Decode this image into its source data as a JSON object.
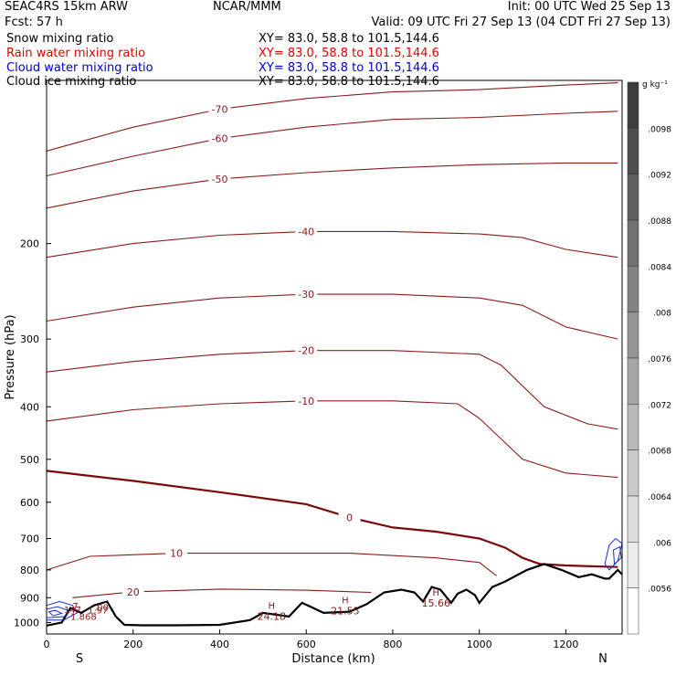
{
  "header": {
    "model": "SEAC4RS 15km ARW",
    "org": "NCAR/MMM",
    "init": "Init: 00 UTC Wed 25 Sep 13",
    "fcst": "Fcst:   57 h",
    "valid": "Valid: 09 UTC Fri 27 Sep 13 (04 CDT Fri 27 Sep 13)"
  },
  "fields": [
    {
      "name": "Snow mixing ratio",
      "xy": "XY=  83.0, 58.8 to 101.5,144.6",
      "color": "#000000"
    },
    {
      "name": "Rain water mixing ratio",
      "xy": "XY=  83.0, 58.8 to 101.5,144.6",
      "color": "#e00000"
    },
    {
      "name": "Cloud water mixing ratio",
      "xy": "XY=  83.0, 58.8 to 101.5,144.6",
      "color": "#0000cc"
    },
    {
      "name": "Cloud ice mixing ratio",
      "xy": "XY=  83.0, 58.8 to 101.5,144.6",
      "color": "#000000"
    }
  ],
  "chart_data": {
    "type": "cross-section contour",
    "xlabel": "Distance (km)",
    "ylabel": "Pressure (hPa)",
    "x_ticks": [
      0,
      200,
      400,
      600,
      800,
      1000,
      1200
    ],
    "y_ticks": [
      200,
      300,
      400,
      500,
      600,
      700,
      800,
      900,
      1000
    ],
    "x_end_labels": [
      "S",
      "N"
    ],
    "xlim": [
      0,
      1330
    ],
    "ylim": [
      1050,
      100
    ],
    "y_log": true,
    "colorbar": {
      "unit": "g kg⁻¹",
      "labels": [
        ".0098",
        ".0092",
        ".0088",
        ".0084",
        ".008",
        ".0076",
        ".0072",
        ".0068",
        ".0064",
        ".006",
        ".0056"
      ]
    },
    "temperature_contours": [
      {
        "label": "-70",
        "points": [
          [
            0,
            135
          ],
          [
            200,
            122
          ],
          [
            400,
            113
          ],
          [
            600,
            108
          ],
          [
            800,
            105
          ],
          [
            1000,
            104
          ],
          [
            1200,
            102
          ],
          [
            1320,
            101
          ]
        ]
      },
      {
        "label": "-60",
        "points": [
          [
            0,
            150
          ],
          [
            200,
            138
          ],
          [
            400,
            128
          ],
          [
            600,
            122
          ],
          [
            800,
            118
          ],
          [
            1000,
            117
          ],
          [
            1200,
            115
          ],
          [
            1320,
            114
          ]
        ]
      },
      {
        "label": "-50",
        "points": [
          [
            0,
            172
          ],
          [
            200,
            160
          ],
          [
            400,
            152
          ],
          [
            600,
            148
          ],
          [
            800,
            145
          ],
          [
            1000,
            143
          ],
          [
            1200,
            142
          ],
          [
            1320,
            142
          ]
        ]
      },
      {
        "label": "-40",
        "points": [
          [
            0,
            212
          ],
          [
            200,
            200
          ],
          [
            400,
            193
          ],
          [
            600,
            190
          ],
          [
            800,
            190
          ],
          [
            1000,
            192
          ],
          [
            1100,
            195
          ],
          [
            1200,
            205
          ],
          [
            1320,
            212
          ]
        ]
      },
      {
        "label": "-30",
        "points": [
          [
            0,
            278
          ],
          [
            200,
            262
          ],
          [
            400,
            252
          ],
          [
            600,
            248
          ],
          [
            800,
            248
          ],
          [
            1000,
            252
          ],
          [
            1100,
            260
          ],
          [
            1200,
            285
          ],
          [
            1320,
            300
          ]
        ]
      },
      {
        "label": "-20",
        "points": [
          [
            0,
            345
          ],
          [
            200,
            330
          ],
          [
            400,
            320
          ],
          [
            600,
            315
          ],
          [
            800,
            315
          ],
          [
            1000,
            320
          ],
          [
            1050,
            335
          ],
          [
            1150,
            400
          ],
          [
            1250,
            430
          ],
          [
            1320,
            440
          ]
        ]
      },
      {
        "label": "-10",
        "points": [
          [
            0,
            425
          ],
          [
            200,
            405
          ],
          [
            400,
            395
          ],
          [
            600,
            390
          ],
          [
            800,
            390
          ],
          [
            950,
            395
          ],
          [
            1000,
            420
          ],
          [
            1100,
            500
          ],
          [
            1200,
            530
          ],
          [
            1320,
            540
          ]
        ]
      },
      {
        "label": "0",
        "points": [
          [
            0,
            525
          ],
          [
            200,
            548
          ],
          [
            400,
            575
          ],
          [
            600,
            605
          ],
          [
            700,
            640
          ],
          [
            800,
            668
          ],
          [
            900,
            680
          ],
          [
            1000,
            700
          ],
          [
            1060,
            728
          ],
          [
            1100,
            760
          ],
          [
            1140,
            780
          ],
          [
            1200,
            785
          ],
          [
            1320,
            790
          ]
        ]
      },
      {
        "label": "10",
        "points": [
          [
            0,
            800
          ],
          [
            100,
            755
          ],
          [
            300,
            745
          ],
          [
            500,
            745
          ],
          [
            700,
            745
          ],
          [
            900,
            760
          ],
          [
            1000,
            775
          ],
          [
            1040,
            820
          ]
        ]
      },
      {
        "label": "20",
        "points": [
          [
            60,
            900
          ],
          [
            200,
            878
          ],
          [
            400,
            868
          ],
          [
            600,
            872
          ],
          [
            750,
            880
          ]
        ]
      }
    ],
    "highs": [
      {
        "label": "H",
        "value": "24.18",
        "x": 520,
        "p": 982
      },
      {
        "label": "H",
        "value": "21.55",
        "x": 690,
        "p": 958
      },
      {
        "label": "H",
        "value": "15.66",
        "x": 900,
        "p": 928
      }
    ],
    "cloud_labels": [
      "7",
      ".00",
      "147",
      "1.97",
      "1.868"
    ]
  }
}
